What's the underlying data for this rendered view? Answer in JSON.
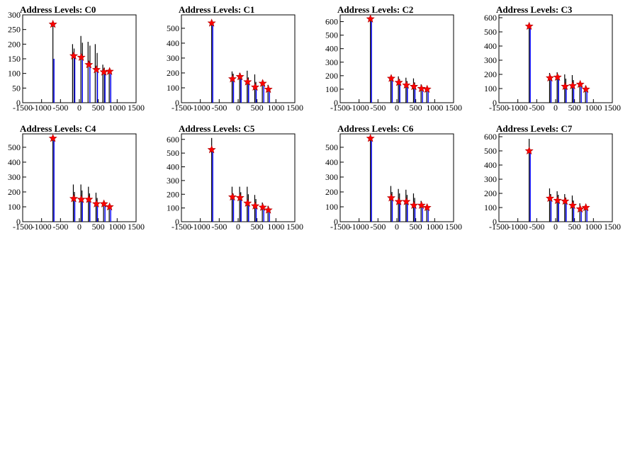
{
  "chart_data": [
    {
      "type": "bar",
      "title": "Address Levels: C0",
      "xlim": [
        -1500,
        1500
      ],
      "ylim": [
        0,
        300
      ],
      "xticks": [
        -1500,
        -1000,
        -500,
        0,
        500,
        1000,
        1500
      ],
      "xtick_labels": [
        "-1500",
        "-1000",
        "-500",
        "0",
        "500",
        "1000",
        "1500"
      ],
      "yticks": [
        0,
        50,
        100,
        150,
        200,
        250,
        300
      ],
      "ytick_labels": [
        "0",
        "50",
        "100",
        "150",
        "200",
        "250",
        "300"
      ],
      "peaks": [
        {
          "x": -700,
          "y": 268
        },
        {
          "x": -150,
          "y": 160
        },
        {
          "x": 50,
          "y": 155
        },
        {
          "x": 250,
          "y": 130
        },
        {
          "x": 450,
          "y": 113
        },
        {
          "x": 650,
          "y": 105
        },
        {
          "x": 800,
          "y": 107
        }
      ],
      "histogram_black": [
        {
          "x": -700,
          "y": 270
        },
        {
          "x": -180,
          "y": 200
        },
        {
          "x": -140,
          "y": 185
        },
        {
          "x": 40,
          "y": 228
        },
        {
          "x": 80,
          "y": 205
        },
        {
          "x": 230,
          "y": 208
        },
        {
          "x": 280,
          "y": 195
        },
        {
          "x": 420,
          "y": 200
        },
        {
          "x": 470,
          "y": 170
        },
        {
          "x": 620,
          "y": 130
        },
        {
          "x": 660,
          "y": 120
        },
        {
          "x": 790,
          "y": 100
        },
        {
          "x": 830,
          "y": 110
        }
      ],
      "histogram_blue": [
        {
          "x": -700,
          "y": 150
        },
        {
          "x": -150,
          "y": 165
        },
        {
          "x": 50,
          "y": 160
        },
        {
          "x": 250,
          "y": 135
        },
        {
          "x": 450,
          "y": 110
        },
        {
          "x": 650,
          "y": 105
        },
        {
          "x": 800,
          "y": 105
        }
      ]
    },
    {
      "type": "bar",
      "title": "Address Levels: C1",
      "xlim": [
        -1500,
        1500
      ],
      "ylim": [
        0,
        590
      ],
      "xticks": [
        -1500,
        -1000,
        -500,
        0,
        500,
        1000,
        1500
      ],
      "xtick_labels": [
        "-1500",
        "-1000",
        "-500",
        "0",
        "500",
        "1000",
        "1500"
      ],
      "yticks": [
        0,
        100,
        200,
        300,
        400,
        500
      ],
      "ytick_labels": [
        "0",
        "100",
        "200",
        "300",
        "400",
        "500"
      ],
      "peaks": [
        {
          "x": -700,
          "y": 535
        },
        {
          "x": -150,
          "y": 160
        },
        {
          "x": 50,
          "y": 175
        },
        {
          "x": 250,
          "y": 140
        },
        {
          "x": 450,
          "y": 105
        },
        {
          "x": 650,
          "y": 130
        },
        {
          "x": 800,
          "y": 90
        }
      ],
      "histogram_black": [
        {
          "x": -700,
          "y": 545
        },
        {
          "x": -160,
          "y": 210
        },
        {
          "x": -130,
          "y": 195
        },
        {
          "x": 40,
          "y": 200
        },
        {
          "x": 70,
          "y": 185
        },
        {
          "x": 240,
          "y": 215
        },
        {
          "x": 270,
          "y": 170
        },
        {
          "x": 440,
          "y": 190
        },
        {
          "x": 470,
          "y": 140
        },
        {
          "x": 640,
          "y": 150
        },
        {
          "x": 790,
          "y": 120
        }
      ],
      "histogram_blue": [
        {
          "x": -700,
          "y": 520
        },
        {
          "x": -150,
          "y": 150
        },
        {
          "x": 50,
          "y": 170
        },
        {
          "x": 250,
          "y": 130
        },
        {
          "x": 450,
          "y": 100
        },
        {
          "x": 650,
          "y": 120
        },
        {
          "x": 800,
          "y": 85
        }
      ]
    },
    {
      "type": "bar",
      "title": "Address Levels: C2",
      "xlim": [
        -1500,
        1500
      ],
      "ylim": [
        0,
        650
      ],
      "xticks": [
        -1500,
        -1000,
        -500,
        0,
        500,
        1000,
        1500
      ],
      "xtick_labels": [
        "-1500",
        "-1000",
        "-500",
        "0",
        "500",
        "1000",
        "1500"
      ],
      "yticks": [
        0,
        100,
        200,
        300,
        400,
        500,
        600
      ],
      "ytick_labels": [
        "0",
        "100",
        "200",
        "300",
        "400",
        "500",
        "600"
      ],
      "peaks": [
        {
          "x": -700,
          "y": 620
        },
        {
          "x": -150,
          "y": 180
        },
        {
          "x": 50,
          "y": 150
        },
        {
          "x": 250,
          "y": 130
        },
        {
          "x": 450,
          "y": 120
        },
        {
          "x": 650,
          "y": 105
        },
        {
          "x": 800,
          "y": 100
        }
      ],
      "histogram_black": [
        {
          "x": -700,
          "y": 630
        },
        {
          "x": -160,
          "y": 200
        },
        {
          "x": -130,
          "y": 185
        },
        {
          "x": 40,
          "y": 195
        },
        {
          "x": 70,
          "y": 175
        },
        {
          "x": 240,
          "y": 185
        },
        {
          "x": 270,
          "y": 160
        },
        {
          "x": 440,
          "y": 180
        },
        {
          "x": 470,
          "y": 150
        },
        {
          "x": 640,
          "y": 135
        },
        {
          "x": 790,
          "y": 110
        }
      ],
      "histogram_blue": [
        {
          "x": -700,
          "y": 610
        },
        {
          "x": -150,
          "y": 170
        },
        {
          "x": 50,
          "y": 145
        },
        {
          "x": 250,
          "y": 125
        },
        {
          "x": 450,
          "y": 115
        },
        {
          "x": 650,
          "y": 100
        },
        {
          "x": 800,
          "y": 95
        }
      ]
    },
    {
      "type": "bar",
      "title": "Address Levels: C3",
      "xlim": [
        -1500,
        1500
      ],
      "ylim": [
        0,
        620
      ],
      "xticks": [
        -1500,
        -1000,
        -500,
        0,
        500,
        1000,
        1500
      ],
      "xtick_labels": [
        "-1500",
        "-1000",
        "-500",
        "0",
        "500",
        "1000",
        "1500"
      ],
      "yticks": [
        0,
        100,
        200,
        300,
        400,
        500,
        600
      ],
      "ytick_labels": [
        "0",
        "100",
        "200",
        "300",
        "400",
        "500",
        "600"
      ],
      "peaks": [
        {
          "x": -700,
          "y": 540
        },
        {
          "x": -150,
          "y": 175
        },
        {
          "x": 50,
          "y": 180
        },
        {
          "x": 250,
          "y": 115
        },
        {
          "x": 450,
          "y": 120
        },
        {
          "x": 650,
          "y": 130
        },
        {
          "x": 800,
          "y": 95
        }
      ],
      "histogram_black": [
        {
          "x": -700,
          "y": 560
        },
        {
          "x": -160,
          "y": 210
        },
        {
          "x": -130,
          "y": 190
        },
        {
          "x": 40,
          "y": 215
        },
        {
          "x": 70,
          "y": 195
        },
        {
          "x": 240,
          "y": 200
        },
        {
          "x": 270,
          "y": 170
        },
        {
          "x": 440,
          "y": 195
        },
        {
          "x": 470,
          "y": 160
        },
        {
          "x": 640,
          "y": 150
        },
        {
          "x": 790,
          "y": 120
        }
      ],
      "histogram_blue": [
        {
          "x": -700,
          "y": 530
        },
        {
          "x": -150,
          "y": 170
        },
        {
          "x": 50,
          "y": 175
        },
        {
          "x": 250,
          "y": 110
        },
        {
          "x": 450,
          "y": 115
        },
        {
          "x": 650,
          "y": 125
        },
        {
          "x": 800,
          "y": 90
        }
      ]
    },
    {
      "type": "bar",
      "title": "Address Levels: C4",
      "xlim": [
        -1500,
        1500
      ],
      "ylim": [
        0,
        590
      ],
      "xticks": [
        -1500,
        -1000,
        -500,
        0,
        500,
        1000,
        1500
      ],
      "xtick_labels": [
        "-1500",
        "-1000",
        "-500",
        "0",
        "500",
        "1000",
        "1500"
      ],
      "yticks": [
        0,
        100,
        200,
        300,
        400,
        500
      ],
      "ytick_labels": [
        "0",
        "100",
        "200",
        "300",
        "400",
        "500"
      ],
      "peaks": [
        {
          "x": -700,
          "y": 560
        },
        {
          "x": -150,
          "y": 155
        },
        {
          "x": 50,
          "y": 150
        },
        {
          "x": 250,
          "y": 150
        },
        {
          "x": 450,
          "y": 120
        },
        {
          "x": 650,
          "y": 120
        },
        {
          "x": 800,
          "y": 100
        }
      ],
      "histogram_black": [
        {
          "x": -700,
          "y": 575
        },
        {
          "x": -160,
          "y": 250
        },
        {
          "x": -130,
          "y": 200
        },
        {
          "x": 40,
          "y": 250
        },
        {
          "x": 70,
          "y": 210
        },
        {
          "x": 240,
          "y": 235
        },
        {
          "x": 270,
          "y": 190
        },
        {
          "x": 440,
          "y": 195
        },
        {
          "x": 470,
          "y": 160
        },
        {
          "x": 640,
          "y": 140
        },
        {
          "x": 790,
          "y": 110
        }
      ],
      "histogram_blue": [
        {
          "x": -700,
          "y": 550
        },
        {
          "x": -150,
          "y": 150
        },
        {
          "x": 50,
          "y": 145
        },
        {
          "x": 250,
          "y": 145
        },
        {
          "x": 450,
          "y": 115
        },
        {
          "x": 650,
          "y": 115
        },
        {
          "x": 800,
          "y": 95
        }
      ]
    },
    {
      "type": "bar",
      "title": "Address Levels: C5",
      "xlim": [
        -1500,
        1500
      ],
      "ylim": [
        0,
        640
      ],
      "xticks": [
        -1500,
        -1000,
        -500,
        0,
        500,
        1000,
        1500
      ],
      "xtick_labels": [
        "-1500",
        "-1000",
        "-500",
        "0",
        "500",
        "1000",
        "1500"
      ],
      "yticks": [
        0,
        100,
        200,
        300,
        400,
        500,
        600
      ],
      "ytick_labels": [
        "0",
        "100",
        "200",
        "300",
        "400",
        "500",
        "600"
      ],
      "peaks": [
        {
          "x": -700,
          "y": 525
        },
        {
          "x": -150,
          "y": 180
        },
        {
          "x": 50,
          "y": 175
        },
        {
          "x": 250,
          "y": 135
        },
        {
          "x": 450,
          "y": 115
        },
        {
          "x": 650,
          "y": 105
        },
        {
          "x": 800,
          "y": 85
        }
      ],
      "histogram_black": [
        {
          "x": -700,
          "y": 610
        },
        {
          "x": -160,
          "y": 255
        },
        {
          "x": -130,
          "y": 205
        },
        {
          "x": 40,
          "y": 255
        },
        {
          "x": 70,
          "y": 215
        },
        {
          "x": 240,
          "y": 255
        },
        {
          "x": 270,
          "y": 200
        },
        {
          "x": 440,
          "y": 195
        },
        {
          "x": 470,
          "y": 165
        },
        {
          "x": 640,
          "y": 140
        },
        {
          "x": 790,
          "y": 115
        }
      ],
      "histogram_blue": [
        {
          "x": -700,
          "y": 520
        },
        {
          "x": -150,
          "y": 175
        },
        {
          "x": 50,
          "y": 170
        },
        {
          "x": 250,
          "y": 130
        },
        {
          "x": 450,
          "y": 110
        },
        {
          "x": 650,
          "y": 100
        },
        {
          "x": 800,
          "y": 80
        }
      ]
    },
    {
      "type": "bar",
      "title": "Address Levels: C6",
      "xlim": [
        -1500,
        1500
      ],
      "ylim": [
        0,
        590
      ],
      "xticks": [
        -1500,
        -1000,
        -500,
        0,
        500,
        1000,
        1500
      ],
      "xtick_labels": [
        "-1500",
        "-1000",
        "-500",
        "0",
        "500",
        "1000",
        "1500"
      ],
      "yticks": [
        0,
        100,
        200,
        300,
        400,
        500
      ],
      "ytick_labels": [
        "0",
        "100",
        "200",
        "300",
        "400",
        "500"
      ],
      "peaks": [
        {
          "x": -700,
          "y": 560
        },
        {
          "x": -150,
          "y": 160
        },
        {
          "x": 50,
          "y": 135
        },
        {
          "x": 250,
          "y": 135
        },
        {
          "x": 450,
          "y": 110
        },
        {
          "x": 650,
          "y": 110
        },
        {
          "x": 800,
          "y": 95
        }
      ],
      "histogram_black": [
        {
          "x": -700,
          "y": 570
        },
        {
          "x": -160,
          "y": 240
        },
        {
          "x": -130,
          "y": 200
        },
        {
          "x": 40,
          "y": 220
        },
        {
          "x": 70,
          "y": 190
        },
        {
          "x": 240,
          "y": 215
        },
        {
          "x": 270,
          "y": 180
        },
        {
          "x": 440,
          "y": 190
        },
        {
          "x": 470,
          "y": 160
        },
        {
          "x": 640,
          "y": 140
        },
        {
          "x": 790,
          "y": 115
        }
      ],
      "histogram_blue": [
        {
          "x": -700,
          "y": 550
        },
        {
          "x": -150,
          "y": 155
        },
        {
          "x": 50,
          "y": 130
        },
        {
          "x": 250,
          "y": 130
        },
        {
          "x": 450,
          "y": 105
        },
        {
          "x": 650,
          "y": 105
        },
        {
          "x": 800,
          "y": 90
        }
      ]
    },
    {
      "type": "bar",
      "title": "Address Levels: C7",
      "xlim": [
        -1500,
        1500
      ],
      "ylim": [
        0,
        620
      ],
      "xticks": [
        -1500,
        -1000,
        -500,
        0,
        500,
        1000,
        1500
      ],
      "xtick_labels": [
        "-1500",
        "-1000",
        "-500",
        "0",
        "500",
        "1000",
        "1500"
      ],
      "yticks": [
        0,
        100,
        200,
        300,
        400,
        500,
        600
      ],
      "ytick_labels": [
        "0",
        "100",
        "200",
        "300",
        "400",
        "500",
        "600"
      ],
      "peaks": [
        {
          "x": -700,
          "y": 500
        },
        {
          "x": -150,
          "y": 165
        },
        {
          "x": 50,
          "y": 150
        },
        {
          "x": 250,
          "y": 145
        },
        {
          "x": 450,
          "y": 115
        },
        {
          "x": 650,
          "y": 90
        },
        {
          "x": 800,
          "y": 100
        }
      ],
      "histogram_black": [
        {
          "x": -700,
          "y": 585
        },
        {
          "x": -160,
          "y": 235
        },
        {
          "x": -130,
          "y": 195
        },
        {
          "x": 40,
          "y": 215
        },
        {
          "x": 70,
          "y": 190
        },
        {
          "x": 240,
          "y": 195
        },
        {
          "x": 270,
          "y": 170
        },
        {
          "x": 440,
          "y": 185
        },
        {
          "x": 470,
          "y": 150
        },
        {
          "x": 640,
          "y": 130
        },
        {
          "x": 790,
          "y": 110
        }
      ],
      "histogram_blue": [
        {
          "x": -700,
          "y": 500
        },
        {
          "x": -150,
          "y": 160
        },
        {
          "x": 50,
          "y": 145
        },
        {
          "x": 250,
          "y": 140
        },
        {
          "x": 450,
          "y": 110
        },
        {
          "x": 650,
          "y": 85
        },
        {
          "x": 800,
          "y": 95
        }
      ]
    }
  ],
  "colors": {
    "histogram_black": "#000000",
    "histogram_blue": "#0000ff",
    "peak_marker": "#ff0000"
  }
}
